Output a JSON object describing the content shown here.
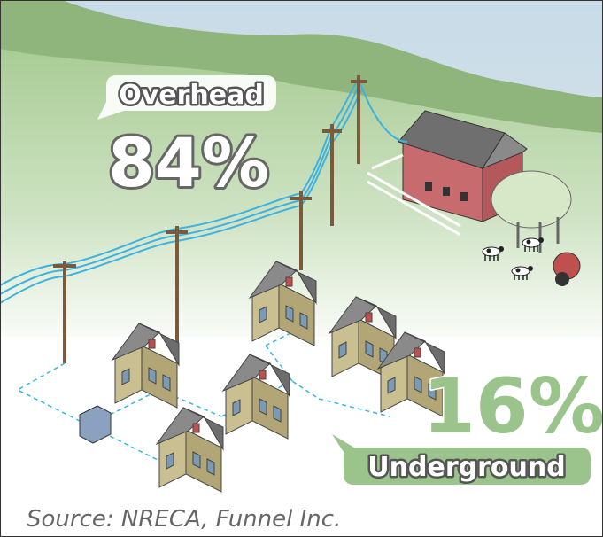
{
  "overhead": {
    "label": "Overhead",
    "percent": "84%"
  },
  "underground": {
    "label": "Underground",
    "percent": "16%"
  },
  "source": "Source: NRECA, Funnel Inc."
}
